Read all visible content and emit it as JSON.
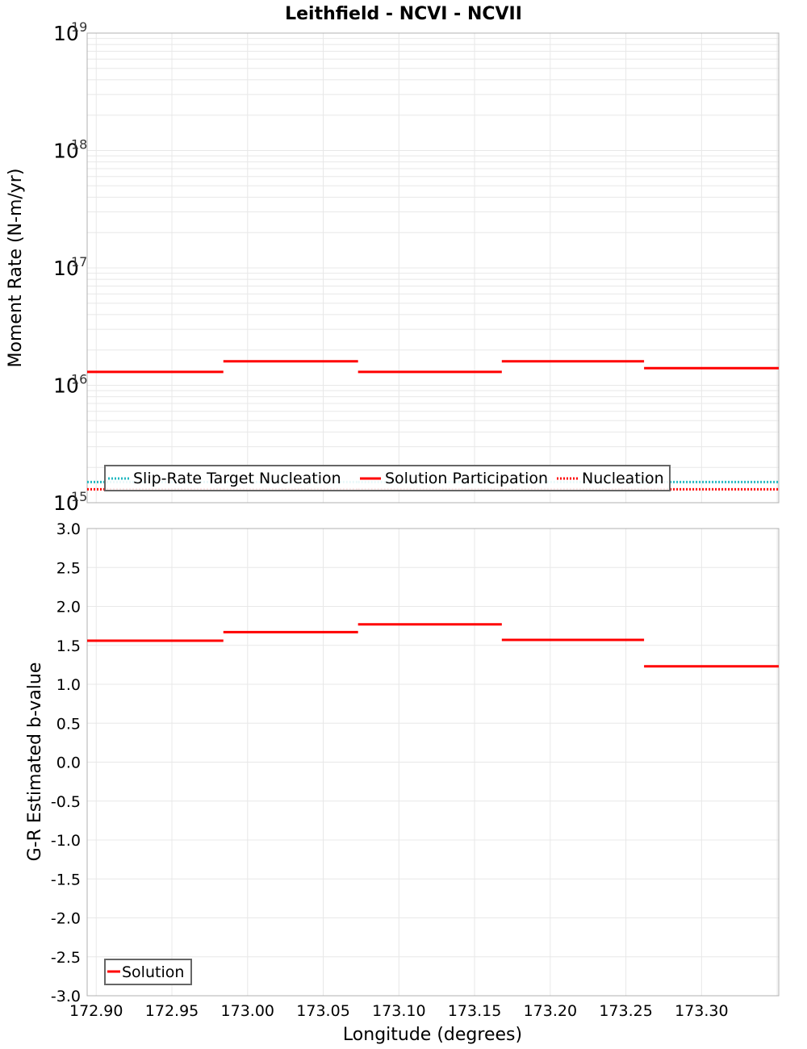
{
  "title": "Leithfield - NCVI - NCVII",
  "colors": {
    "solution": "#ff0000",
    "nucleation": "#ff0000",
    "target": "#22b8c0",
    "grid": "#e8e8e8",
    "frame": "#b0b0b0"
  },
  "chart_data": [
    {
      "type": "line",
      "title": "Leithfield - NCVI - NCVII",
      "xlabel": "",
      "ylabel": "Moment Rate (N-m/yr)",
      "yscale": "log",
      "ylim": [
        1000000000000000.0,
        1e+19
      ],
      "ytick_labels": [
        "10^19",
        "10^18",
        "10^17",
        "10^16",
        "10^15"
      ],
      "xlim": [
        172.894,
        173.351
      ],
      "x_bin_edges": [
        172.894,
        172.984,
        173.073,
        173.168,
        173.262,
        173.351
      ],
      "grid": true,
      "legend_position": "lower-left inside",
      "series": [
        {
          "name": "Slip-Rate Target Nucleation",
          "style": "dotted",
          "color": "#22b8c0",
          "values": [
            1500000000000000.0,
            1500000000000000.0,
            1500000000000000.0,
            1500000000000000.0,
            1500000000000000.0
          ]
        },
        {
          "name": "Solution Participation",
          "style": "solid",
          "color": "#ff0000",
          "values": [
            1.3e+16,
            1.6e+16,
            1.3e+16,
            1.6e+16,
            1.4e+16
          ]
        },
        {
          "name": "Nucleation",
          "style": "dotted",
          "color": "#ff0000",
          "values": [
            1300000000000000.0,
            1300000000000000.0,
            1300000000000000.0,
            1300000000000000.0,
            1300000000000000.0
          ]
        }
      ]
    },
    {
      "type": "line",
      "xlabel": "Longitude (degrees)",
      "ylabel": "G-R Estimated b-value",
      "ylim": [
        -3.0,
        3.0
      ],
      "ytick_labels": [
        "3.0",
        "2.5",
        "2.0",
        "1.5",
        "1.0",
        "0.5",
        "0.0",
        "-0.5",
        "-1.0",
        "-1.5",
        "-2.0",
        "-2.5",
        "-3.0"
      ],
      "xtick_labels": [
        "172.90",
        "172.95",
        "173.00",
        "173.05",
        "173.10",
        "173.15",
        "173.20",
        "173.25",
        "173.30"
      ],
      "xlim": [
        172.894,
        173.351
      ],
      "x_bin_edges": [
        172.894,
        172.984,
        173.073,
        173.168,
        173.262,
        173.351
      ],
      "grid": true,
      "legend_position": "lower-left inside",
      "series": [
        {
          "name": "Solution",
          "style": "solid",
          "color": "#ff0000",
          "values": [
            1.56,
            1.67,
            1.77,
            1.57,
            1.23
          ]
        }
      ]
    }
  ]
}
